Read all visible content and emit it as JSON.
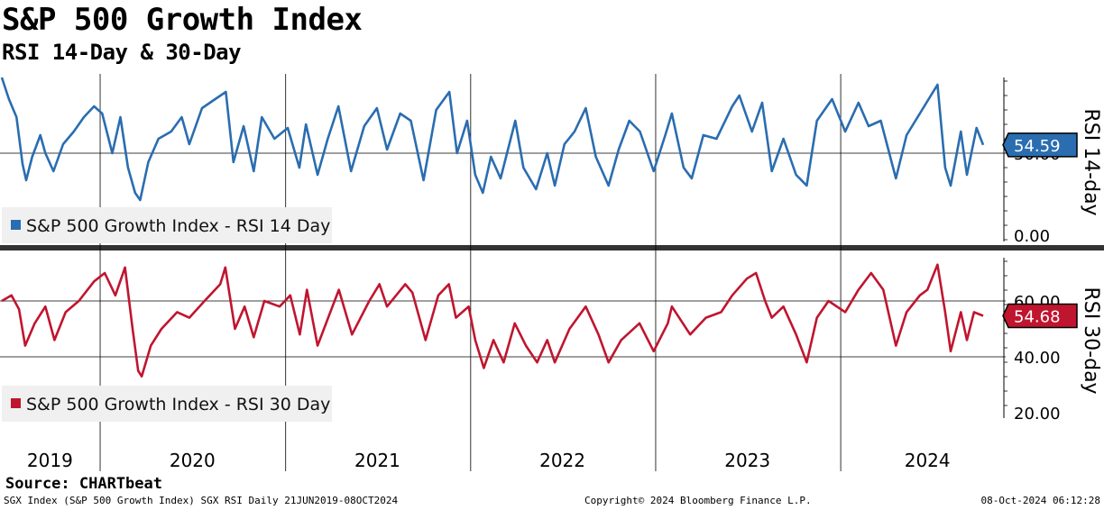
{
  "title": "S&P 500 Growth Index",
  "subtitle": "RSI 14-Day & 30-Day",
  "source": "Source: CHARTbeat",
  "footer": {
    "left": "SGX Index (S&P 500 Growth Index) SGX RSI  Daily 21JUN2019-08OCT2024",
    "center": "Copyright© 2024 Bloomberg Finance L.P.",
    "right": "08-Oct-2024 06:12:28"
  },
  "chart_data": [
    {
      "type": "line",
      "title": "",
      "ylabel": "RSI 14-day",
      "y_ticks": [
        "0.00"
      ],
      "hidden_tick": "50.00",
      "ylim": [
        0,
        93
      ],
      "gridlines": [
        50
      ],
      "color": "#2a6db0",
      "legend": "S&P 500 Growth Index - RSI 14 Day",
      "last_value": "54.59",
      "series": [
        {
          "name": "S&P 500 Growth Index - RSI 14 Day",
          "points": [
            [
              "2019-06-21",
              92
            ],
            [
              "2019-07-05",
              80
            ],
            [
              "2019-07-20",
              70
            ],
            [
              "2019-08-01",
              44
            ],
            [
              "2019-08-08",
              35
            ],
            [
              "2019-08-20",
              48
            ],
            [
              "2019-09-05",
              60
            ],
            [
              "2019-09-15",
              50
            ],
            [
              "2019-10-01",
              40
            ],
            [
              "2019-10-20",
              55
            ],
            [
              "2019-11-10",
              62
            ],
            [
              "2019-11-30",
              70
            ],
            [
              "2019-12-20",
              76
            ],
            [
              "2020-01-05",
              72
            ],
            [
              "2020-01-25",
              50
            ],
            [
              "2020-02-10",
              70
            ],
            [
              "2020-02-25",
              42
            ],
            [
              "2020-03-10",
              28
            ],
            [
              "2020-03-20",
              24
            ],
            [
              "2020-04-05",
              45
            ],
            [
              "2020-04-25",
              58
            ],
            [
              "2020-05-20",
              62
            ],
            [
              "2020-06-10",
              70
            ],
            [
              "2020-06-25",
              55
            ],
            [
              "2020-07-20",
              75
            ],
            [
              "2020-08-15",
              80
            ],
            [
              "2020-09-05",
              84
            ],
            [
              "2020-09-20",
              45
            ],
            [
              "2020-10-10",
              65
            ],
            [
              "2020-10-30",
              40
            ],
            [
              "2020-11-15",
              70
            ],
            [
              "2020-12-10",
              58
            ],
            [
              "2021-01-05",
              64
            ],
            [
              "2021-01-28",
              42
            ],
            [
              "2021-02-10",
              66
            ],
            [
              "2021-03-05",
              38
            ],
            [
              "2021-03-25",
              58
            ],
            [
              "2021-04-15",
              76
            ],
            [
              "2021-05-10",
              40
            ],
            [
              "2021-06-05",
              65
            ],
            [
              "2021-06-30",
              75
            ],
            [
              "2021-07-20",
              52
            ],
            [
              "2021-08-15",
              72
            ],
            [
              "2021-09-05",
              68
            ],
            [
              "2021-09-30",
              35
            ],
            [
              "2021-10-25",
              74
            ],
            [
              "2021-11-20",
              84
            ],
            [
              "2021-12-05",
              50
            ],
            [
              "2021-12-25",
              68
            ],
            [
              "2022-01-10",
              38
            ],
            [
              "2022-01-25",
              28
            ],
            [
              "2022-02-10",
              48
            ],
            [
              "2022-03-01",
              36
            ],
            [
              "2022-03-30",
              68
            ],
            [
              "2022-04-15",
              42
            ],
            [
              "2022-05-10",
              30
            ],
            [
              "2022-06-01",
              50
            ],
            [
              "2022-06-16",
              32
            ],
            [
              "2022-07-05",
              55
            ],
            [
              "2022-07-25",
              62
            ],
            [
              "2022-08-16",
              75
            ],
            [
              "2022-09-05",
              48
            ],
            [
              "2022-09-30",
              32
            ],
            [
              "2022-10-20",
              52
            ],
            [
              "2022-11-10",
              68
            ],
            [
              "2022-12-01",
              62
            ],
            [
              "2022-12-28",
              40
            ],
            [
              "2023-01-20",
              60
            ],
            [
              "2023-02-02",
              72
            ],
            [
              "2023-02-25",
              42
            ],
            [
              "2023-03-13",
              36
            ],
            [
              "2023-04-05",
              60
            ],
            [
              "2023-05-01",
              58
            ],
            [
              "2023-06-01",
              76
            ],
            [
              "2023-06-15",
              82
            ],
            [
              "2023-07-10",
              62
            ],
            [
              "2023-07-30",
              78
            ],
            [
              "2023-08-18",
              40
            ],
            [
              "2023-09-10",
              58
            ],
            [
              "2023-10-05",
              38
            ],
            [
              "2023-10-26",
              32
            ],
            [
              "2023-11-15",
              68
            ],
            [
              "2023-12-15",
              80
            ],
            [
              "2024-01-10",
              62
            ],
            [
              "2024-02-05",
              78
            ],
            [
              "2024-02-25",
              65
            ],
            [
              "2024-03-20",
              68
            ],
            [
              "2024-04-19",
              36
            ],
            [
              "2024-05-10",
              60
            ],
            [
              "2024-06-05",
              72
            ],
            [
              "2024-07-10",
              88
            ],
            [
              "2024-07-25",
              42
            ],
            [
              "2024-08-05",
              32
            ],
            [
              "2024-08-25",
              62
            ],
            [
              "2024-09-06",
              38
            ],
            [
              "2024-09-25",
              64
            ],
            [
              "2024-10-08",
              54.59
            ]
          ]
        }
      ]
    },
    {
      "type": "line",
      "title": "",
      "ylabel": "RSI 30-day",
      "y_ticks": [
        "60.00",
        "40.00",
        "20.00"
      ],
      "ylim": [
        18,
        76
      ],
      "gridlines": [
        60,
        40
      ],
      "color": "#c0152f",
      "legend": "S&P 500 Growth Index - RSI 30 Day",
      "last_value": "54.68",
      "series": [
        {
          "name": "S&P 500 Growth Index - RSI 30 Day",
          "points": [
            [
              "2019-06-21",
              60
            ],
            [
              "2019-07-10",
              62
            ],
            [
              "2019-07-25",
              57
            ],
            [
              "2019-08-06",
              44
            ],
            [
              "2019-08-25",
              52
            ],
            [
              "2019-09-15",
              58
            ],
            [
              "2019-10-03",
              46
            ],
            [
              "2019-10-25",
              56
            ],
            [
              "2019-11-20",
              60
            ],
            [
              "2019-12-20",
              67
            ],
            [
              "2020-01-10",
              70
            ],
            [
              "2020-01-31",
              62
            ],
            [
              "2020-02-19",
              72
            ],
            [
              "2020-03-05",
              50
            ],
            [
              "2020-03-16",
              35
            ],
            [
              "2020-03-23",
              33
            ],
            [
              "2020-04-10",
              44
            ],
            [
              "2020-05-01",
              50
            ],
            [
              "2020-06-01",
              56
            ],
            [
              "2020-06-25",
              54
            ],
            [
              "2020-07-25",
              60
            ],
            [
              "2020-08-25",
              66
            ],
            [
              "2020-09-04",
              72
            ],
            [
              "2020-09-23",
              50
            ],
            [
              "2020-10-12",
              58
            ],
            [
              "2020-10-30",
              47
            ],
            [
              "2020-11-20",
              60
            ],
            [
              "2020-12-20",
              58
            ],
            [
              "2021-01-10",
              62
            ],
            [
              "2021-01-29",
              48
            ],
            [
              "2021-02-12",
              64
            ],
            [
              "2021-03-05",
              44
            ],
            [
              "2021-03-30",
              56
            ],
            [
              "2021-04-16",
              64
            ],
            [
              "2021-05-12",
              48
            ],
            [
              "2021-06-15",
              60
            ],
            [
              "2021-07-05",
              66
            ],
            [
              "2021-07-20",
              58
            ],
            [
              "2021-08-25",
              66
            ],
            [
              "2021-09-08",
              63
            ],
            [
              "2021-10-04",
              46
            ],
            [
              "2021-10-29",
              62
            ],
            [
              "2021-11-19",
              66
            ],
            [
              "2021-12-03",
              54
            ],
            [
              "2021-12-28",
              58
            ],
            [
              "2022-01-10",
              46
            ],
            [
              "2022-01-27",
              36
            ],
            [
              "2022-02-15",
              46
            ],
            [
              "2022-03-07",
              38
            ],
            [
              "2022-03-29",
              52
            ],
            [
              "2022-04-20",
              44
            ],
            [
              "2022-05-12",
              38
            ],
            [
              "2022-06-01",
              46
            ],
            [
              "2022-06-16",
              38
            ],
            [
              "2022-07-15",
              50
            ],
            [
              "2022-08-16",
              58
            ],
            [
              "2022-09-10",
              48
            ],
            [
              "2022-09-30",
              38
            ],
            [
              "2022-10-25",
              46
            ],
            [
              "2022-11-30",
              52
            ],
            [
              "2022-12-28",
              42
            ],
            [
              "2023-01-25",
              52
            ],
            [
              "2023-02-02",
              58
            ],
            [
              "2023-03-10",
              48
            ],
            [
              "2023-04-10",
              54
            ],
            [
              "2023-05-10",
              56
            ],
            [
              "2023-06-01",
              62
            ],
            [
              "2023-06-30",
              68
            ],
            [
              "2023-07-18",
              70
            ],
            [
              "2023-08-05",
              60
            ],
            [
              "2023-08-18",
              54
            ],
            [
              "2023-09-10",
              58
            ],
            [
              "2023-10-05",
              48
            ],
            [
              "2023-10-26",
              38
            ],
            [
              "2023-11-15",
              54
            ],
            [
              "2023-12-08",
              60
            ],
            [
              "2024-01-10",
              56
            ],
            [
              "2024-02-05",
              64
            ],
            [
              "2024-03-01",
              70
            ],
            [
              "2024-03-25",
              64
            ],
            [
              "2024-04-19",
              44
            ],
            [
              "2024-05-10",
              56
            ],
            [
              "2024-06-05",
              62
            ],
            [
              "2024-06-20",
              64
            ],
            [
              "2024-07-10",
              73
            ],
            [
              "2024-07-25",
              56
            ],
            [
              "2024-08-05",
              42
            ],
            [
              "2024-08-25",
              56
            ],
            [
              "2024-09-06",
              46
            ],
            [
              "2024-09-20",
              56
            ],
            [
              "2024-10-08",
              54.68
            ]
          ]
        }
      ]
    }
  ],
  "x_axis": {
    "range": [
      "2019-06-21",
      "2024-10-08"
    ],
    "labels": [
      {
        "text": "2019",
        "date": "2019-09-24"
      },
      {
        "text": "2020",
        "date": "2020-07-01"
      },
      {
        "text": "2021",
        "date": "2021-07-01"
      },
      {
        "text": "2022",
        "date": "2022-07-01"
      },
      {
        "text": "2023",
        "date": "2023-07-01"
      },
      {
        "text": "2024",
        "date": "2024-06-20"
      }
    ],
    "year_boundaries": [
      "2020-01-01",
      "2021-01-01",
      "2022-01-01",
      "2023-01-01",
      "2024-01-01"
    ]
  }
}
